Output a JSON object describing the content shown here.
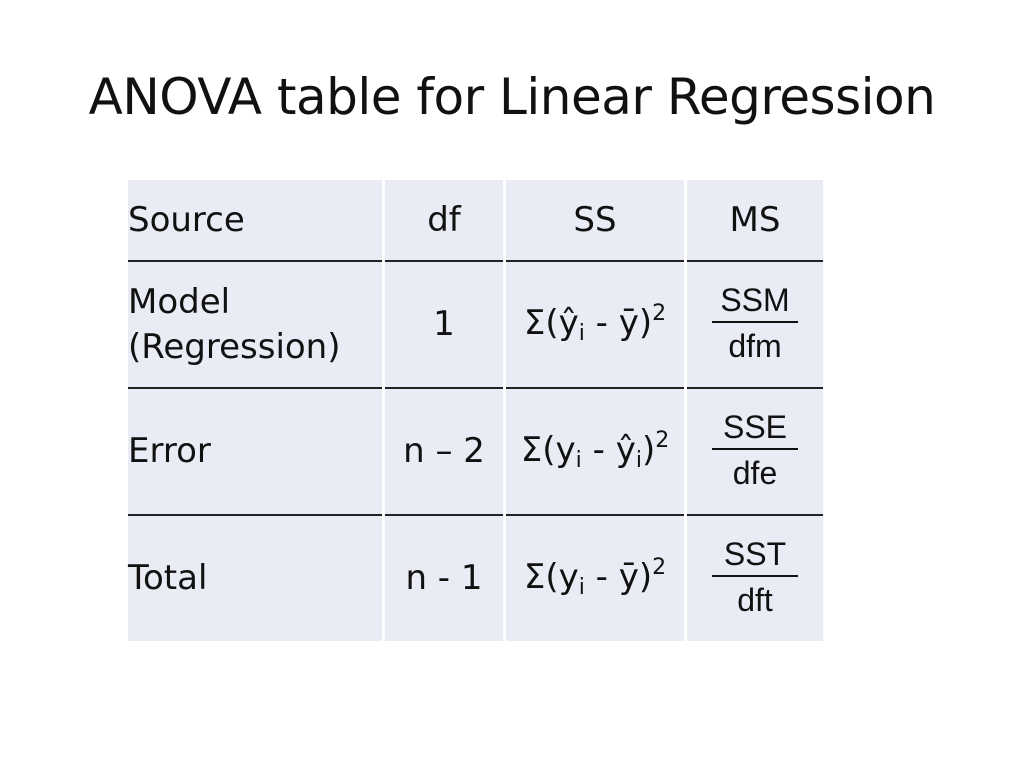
{
  "slide": {
    "title": "ANOVA table for Linear Regression"
  },
  "table": {
    "headers": {
      "source": "Source",
      "df": "df",
      "ss": "SS",
      "ms": "MS"
    },
    "rows": [
      {
        "source_line1": "Model",
        "source_line2": "(Regression)",
        "df": "1",
        "ss": {
          "open": "Σ(",
          "term1": "ŷ",
          "term1_sub": "i",
          "mid": " - ",
          "term2": "ȳ",
          "term2_sub": "",
          "close": ")",
          "power": "2"
        },
        "ms": {
          "numerator": "SSM",
          "denominator": "dfm"
        }
      },
      {
        "source_line1": "Error",
        "df": "n – 2",
        "ss": {
          "open": "Σ(",
          "term1": "y",
          "term1_sub": "i",
          "mid": " - ",
          "term2": "ŷ",
          "term2_sub": "i",
          "close": ")",
          "power": "2"
        },
        "ms": {
          "numerator": "SSE",
          "denominator": "dfe"
        }
      },
      {
        "source_line1": "Total",
        "df": "n - 1",
        "ss": {
          "open": "Σ(",
          "term1": "y",
          "term1_sub": "i",
          "mid": " - ",
          "term2": "ȳ",
          "term2_sub": "",
          "close": ")",
          "power": "2"
        },
        "ms": {
          "numerator": "SST",
          "denominator": "dft"
        }
      }
    ]
  }
}
